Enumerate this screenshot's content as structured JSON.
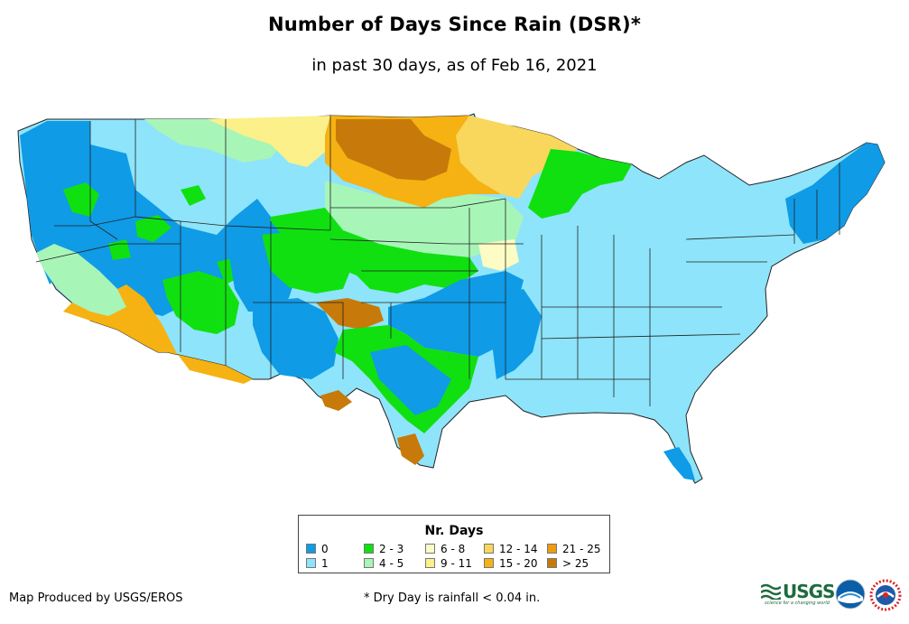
{
  "title": "Number of Days Since Rain (DSR)*",
  "subtitle": "in past 30 days, as of Feb 16, 2021",
  "legend": {
    "title": "Nr. Days",
    "items": [
      {
        "label": "0",
        "color": "#0f9be6"
      },
      {
        "label": "1",
        "color": "#8ee4fa"
      },
      {
        "label": "2 - 3",
        "color": "#10e010"
      },
      {
        "label": "4 - 5",
        "color": "#a8f5b8"
      },
      {
        "label": "6 - 8",
        "color": "#fcfcc4"
      },
      {
        "label": "9 - 11",
        "color": "#fbf08a"
      },
      {
        "label": "12 - 14",
        "color": "#f8d75c"
      },
      {
        "label": "15 - 20",
        "color": "#f5b212"
      },
      {
        "label": "21 - 25",
        "color": "#ed9b12"
      },
      {
        "label": "> 25",
        "color": "#c77a0a"
      }
    ]
  },
  "footer": {
    "credit": "Map Produced by USGS/EROS",
    "note": "* Dry Day is rainfall < 0.04 in."
  },
  "logos": {
    "usgs": "USGS",
    "usgs_tagline": "science for a changing world",
    "noaa": "NOAA",
    "nws": "National Weather Service"
  }
}
